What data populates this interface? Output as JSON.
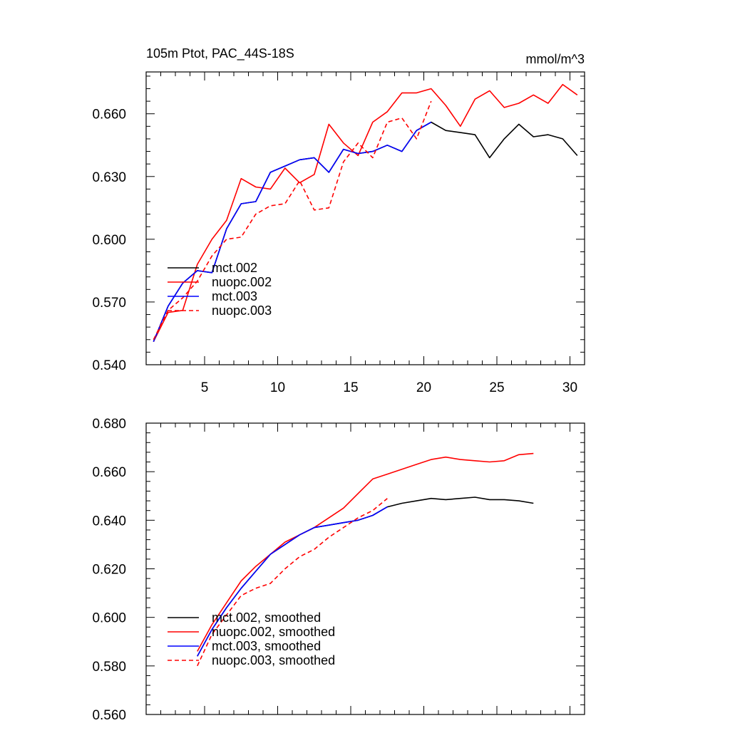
{
  "chart_data": [
    {
      "type": "line",
      "title_left": "105m Ptot, PAC_44S-18S",
      "title_right": "mmol/m^3",
      "xlabel": "",
      "ylabel": "",
      "xlim": [
        1,
        31
      ],
      "ylim": [
        0.54,
        0.68
      ],
      "xticks": [
        5,
        10,
        15,
        20,
        25,
        30
      ],
      "xtick_labels": [
        "5",
        "10",
        "15",
        "20",
        "25",
        "30"
      ],
      "yticks": [
        0.54,
        0.57,
        0.6,
        0.63,
        0.66
      ],
      "ytick_labels": [
        "0.540",
        "0.570",
        "0.600",
        "0.630",
        "0.660"
      ],
      "legend_position": "bottom-left",
      "series": [
        {
          "name": "mct.002",
          "color": "#000000",
          "dash": "solid",
          "x": [
            1.5,
            2.5,
            3.5,
            4.5,
            5.5,
            6.5,
            7.5,
            8.5,
            9.5,
            10.5,
            11.5,
            12.5,
            13.5,
            14.5,
            15.5,
            16.5,
            17.5,
            18.5,
            19.5,
            20.5,
            21.5,
            22.5,
            23.5,
            24.5,
            25.5,
            26.5,
            27.5,
            28.5,
            29.5,
            30.5
          ],
          "y": [
            0.551,
            0.568,
            0.579,
            0.585,
            0.584,
            0.605,
            0.617,
            0.618,
            0.632,
            0.635,
            0.638,
            0.639,
            0.632,
            0.643,
            0.641,
            0.642,
            0.645,
            0.642,
            0.652,
            0.656,
            0.652,
            0.651,
            0.65,
            0.639,
            0.648,
            0.655,
            0.649,
            0.65,
            0.648,
            0.64
          ]
        },
        {
          "name": "nuopc.002",
          "color": "#ff0000",
          "dash": "solid",
          "x": [
            1.5,
            2.5,
            3.5,
            4.5,
            5.5,
            6.5,
            7.5,
            8.5,
            9.5,
            10.5,
            11.5,
            12.5,
            13.5,
            14.5,
            15.5,
            16.5,
            17.5,
            18.5,
            19.5,
            20.5,
            21.5,
            22.5,
            23.5,
            24.5,
            25.5,
            26.5,
            27.5,
            28.5,
            29.5,
            30.5
          ],
          "y": [
            0.551,
            0.565,
            0.566,
            0.588,
            0.6,
            0.609,
            0.629,
            0.625,
            0.624,
            0.634,
            0.627,
            0.631,
            0.655,
            0.646,
            0.64,
            0.656,
            0.661,
            0.67,
            0.67,
            0.672,
            0.664,
            0.654,
            0.667,
            0.671,
            0.663,
            0.665,
            0.669,
            0.665,
            0.674,
            0.669
          ]
        },
        {
          "name": "mct.003",
          "color": "#0000ff",
          "dash": "solid",
          "x": [
            1.5,
            2.5,
            3.5,
            4.5,
            5.5,
            6.5,
            7.5,
            8.5,
            9.5,
            10.5,
            11.5,
            12.5,
            13.5,
            14.5,
            15.5,
            16.5,
            17.5,
            18.5,
            19.5,
            20.5
          ],
          "y": [
            0.551,
            0.568,
            0.579,
            0.585,
            0.584,
            0.605,
            0.617,
            0.618,
            0.632,
            0.635,
            0.638,
            0.639,
            0.632,
            0.643,
            0.641,
            0.642,
            0.645,
            0.642,
            0.652,
            0.656
          ]
        },
        {
          "name": "nuopc.003",
          "color": "#ff0000",
          "dash": "dashed",
          "x": [
            1.5,
            2.5,
            3.5,
            4.5,
            5.5,
            6.5,
            7.5,
            8.5,
            9.5,
            10.5,
            11.5,
            12.5,
            13.5,
            14.5,
            15.5,
            16.5,
            17.5,
            18.5,
            19.5,
            20.5
          ],
          "y": [
            0.552,
            0.566,
            0.572,
            0.58,
            0.592,
            0.6,
            0.601,
            0.612,
            0.616,
            0.617,
            0.628,
            0.614,
            0.615,
            0.637,
            0.646,
            0.639,
            0.656,
            0.658,
            0.648,
            0.666
          ]
        }
      ]
    },
    {
      "type": "line",
      "title_left": "",
      "title_right": "",
      "xlabel": "",
      "ylabel": "",
      "xlim": [
        1,
        31
      ],
      "ylim": [
        0.56,
        0.68
      ],
      "xticks": [
        5,
        10,
        15,
        20,
        25,
        30
      ],
      "xtick_labels": [],
      "yticks": [
        0.56,
        0.58,
        0.6,
        0.62,
        0.64,
        0.66,
        0.68
      ],
      "ytick_labels": [
        "0.560",
        "0.580",
        "0.600",
        "0.620",
        "0.640",
        "0.660",
        "0.680"
      ],
      "legend_position": "bottom-left",
      "series": [
        {
          "name": "mct.002, smoothed",
          "color": "#000000",
          "dash": "solid",
          "x": [
            4.5,
            5.5,
            6.5,
            7.5,
            8.5,
            9.5,
            10.5,
            11.5,
            12.5,
            13.5,
            14.5,
            15.5,
            16.5,
            17.5,
            18.5,
            19.5,
            20.5,
            21.5,
            22.5,
            23.5,
            24.5,
            25.5,
            26.5,
            27.5
          ],
          "y": [
            0.584,
            0.595,
            0.604,
            0.612,
            0.619,
            0.626,
            0.63,
            0.634,
            0.637,
            0.638,
            0.639,
            0.64,
            0.642,
            0.6455,
            0.647,
            0.648,
            0.649,
            0.6485,
            0.649,
            0.6495,
            0.6485,
            0.6485,
            0.648,
            0.647
          ]
        },
        {
          "name": "nuopc.002, smoothed",
          "color": "#ff0000",
          "dash": "solid",
          "x": [
            4.5,
            5.5,
            6.5,
            7.5,
            8.5,
            9.5,
            10.5,
            11.5,
            12.5,
            13.5,
            14.5,
            15.5,
            16.5,
            17.5,
            18.5,
            19.5,
            20.5,
            21.5,
            22.5,
            23.5,
            24.5,
            25.5,
            26.5,
            27.5
          ],
          "y": [
            0.586,
            0.597,
            0.606,
            0.615,
            0.621,
            0.626,
            0.631,
            0.634,
            0.637,
            0.641,
            0.645,
            0.651,
            0.657,
            0.659,
            0.661,
            0.663,
            0.665,
            0.666,
            0.665,
            0.6645,
            0.664,
            0.6645,
            0.667,
            0.6675
          ]
        },
        {
          "name": "mct.003, smoothed",
          "color": "#0000ff",
          "dash": "solid",
          "x": [
            4.5,
            5.5,
            6.5,
            7.5,
            8.5,
            9.5,
            10.5,
            11.5,
            12.5,
            13.5,
            14.5,
            15.5,
            16.5,
            17.5
          ],
          "y": [
            0.584,
            0.595,
            0.604,
            0.612,
            0.619,
            0.626,
            0.63,
            0.634,
            0.637,
            0.638,
            0.639,
            0.64,
            0.642,
            0.6455
          ]
        },
        {
          "name": "nuopc.003, smoothed",
          "color": "#ff0000",
          "dash": "dashed",
          "x": [
            4.5,
            5.5,
            6.5,
            7.5,
            8.5,
            9.5,
            10.5,
            11.5,
            12.5,
            13.5,
            14.5,
            15.5,
            16.5,
            17.5
          ],
          "y": [
            0.58,
            0.593,
            0.601,
            0.609,
            0.612,
            0.614,
            0.62,
            0.625,
            0.628,
            0.633,
            0.637,
            0.641,
            0.644,
            0.649
          ]
        }
      ]
    }
  ]
}
